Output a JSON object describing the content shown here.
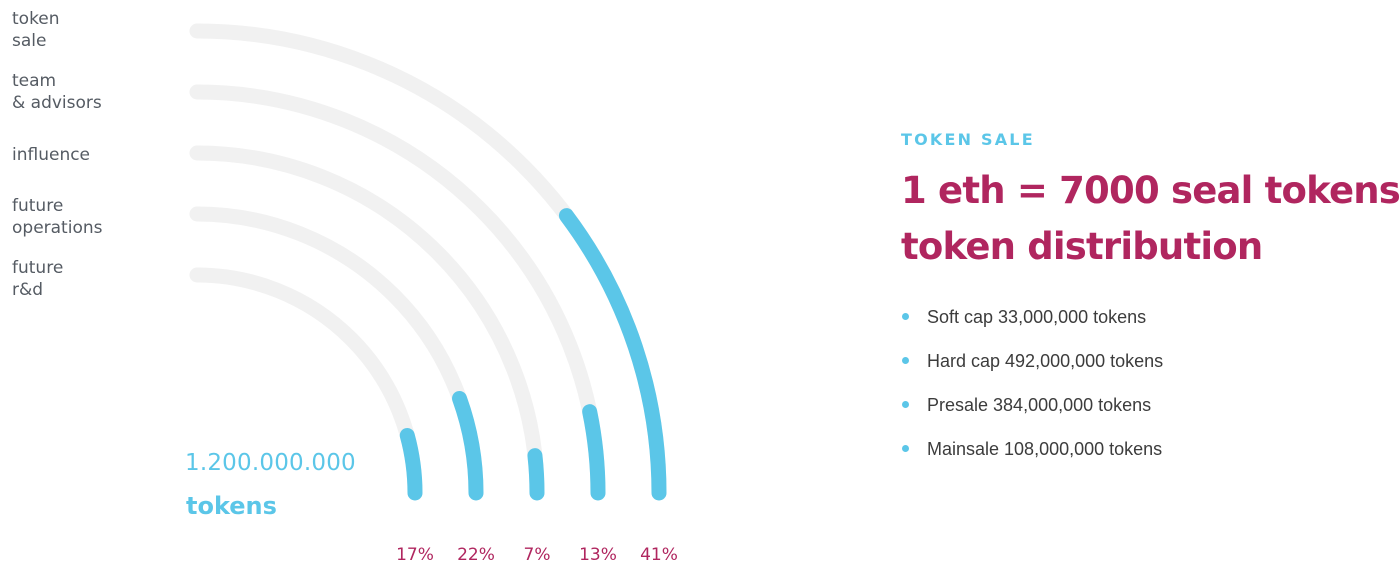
{
  "chart_data": {
    "type": "radial-bar",
    "total": {
      "value": "1.200.000.000",
      "unit": "tokens"
    },
    "categories": [
      "token\nsale",
      "team\n& advisors",
      "influence",
      "future\noperations",
      "future\nr&d"
    ],
    "values": [
      41,
      13,
      7,
      22,
      17
    ],
    "value_labels": [
      "41%",
      "13%",
      "7%",
      "22%",
      "17%"
    ],
    "colors": {
      "filled": "#5bc6e8",
      "track": "#f1f1f1",
      "value_label": "#b0265f"
    }
  },
  "info": {
    "eyebrow": "TOKEN SALE",
    "headline_line1": "1 eth = 7000 seal tokens",
    "headline_line2": "token distribution",
    "facts": [
      "Soft cap 33,000,000 tokens",
      "Hard cap 492,000,000 tokens",
      "Presale 384,000,000 tokens",
      "Mainsale 108,000,000 tokens"
    ]
  },
  "colors": {
    "accent": "#5bc6e8",
    "brand": "#b0265f",
    "text": "#3c3c3c",
    "muted": "#555b63"
  }
}
